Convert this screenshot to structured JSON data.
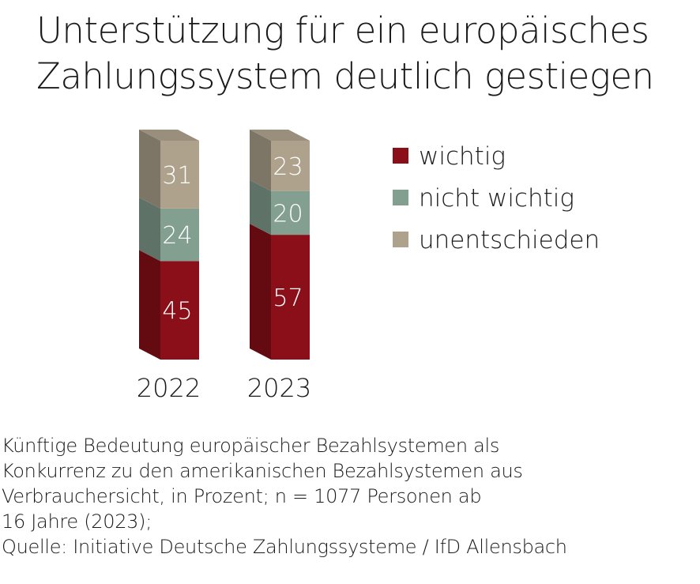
{
  "title": {
    "line1": "Unterstützung für ein europäisches",
    "line2": "Zahlungssystem deutlich gestiegen"
  },
  "colors": {
    "wichtig": "#8b0f18",
    "nicht_wichtig": "#829f90",
    "unentschieden": "#aea28d",
    "text": "#1a1a1a",
    "label_on_bar": "#ffffff"
  },
  "chart_data": {
    "type": "bar",
    "stacked": true,
    "three_d": true,
    "categories": [
      "2022",
      "2023"
    ],
    "series": [
      {
        "name": "wichtig",
        "values": [
          45,
          57
        ],
        "color": "#8b0f18"
      },
      {
        "name": "nicht wichtig",
        "values": [
          24,
          20
        ],
        "color": "#829f90"
      },
      {
        "name": "unentschieden",
        "values": [
          31,
          23
        ],
        "color": "#aea28d"
      }
    ],
    "ylim": [
      0,
      100
    ],
    "legend": {
      "placement": "right",
      "entries": [
        "wichtig",
        "nicht wichtig",
        "unentschieden"
      ]
    },
    "grid": false
  },
  "caption": {
    "line1": "Künftige Bedeutung europäischer Bezahlsystemen als",
    "line2": "Konkurrenz zu den amerikanischen Bezahlsystemen aus",
    "line3": "Verbrauchersicht, in Prozent; n = 1077 Personen ab",
    "line4": "16 Jahre (2023);",
    "line5": "Quelle: Initiative Deutsche Zahlungssysteme / IfD Allensbach"
  }
}
